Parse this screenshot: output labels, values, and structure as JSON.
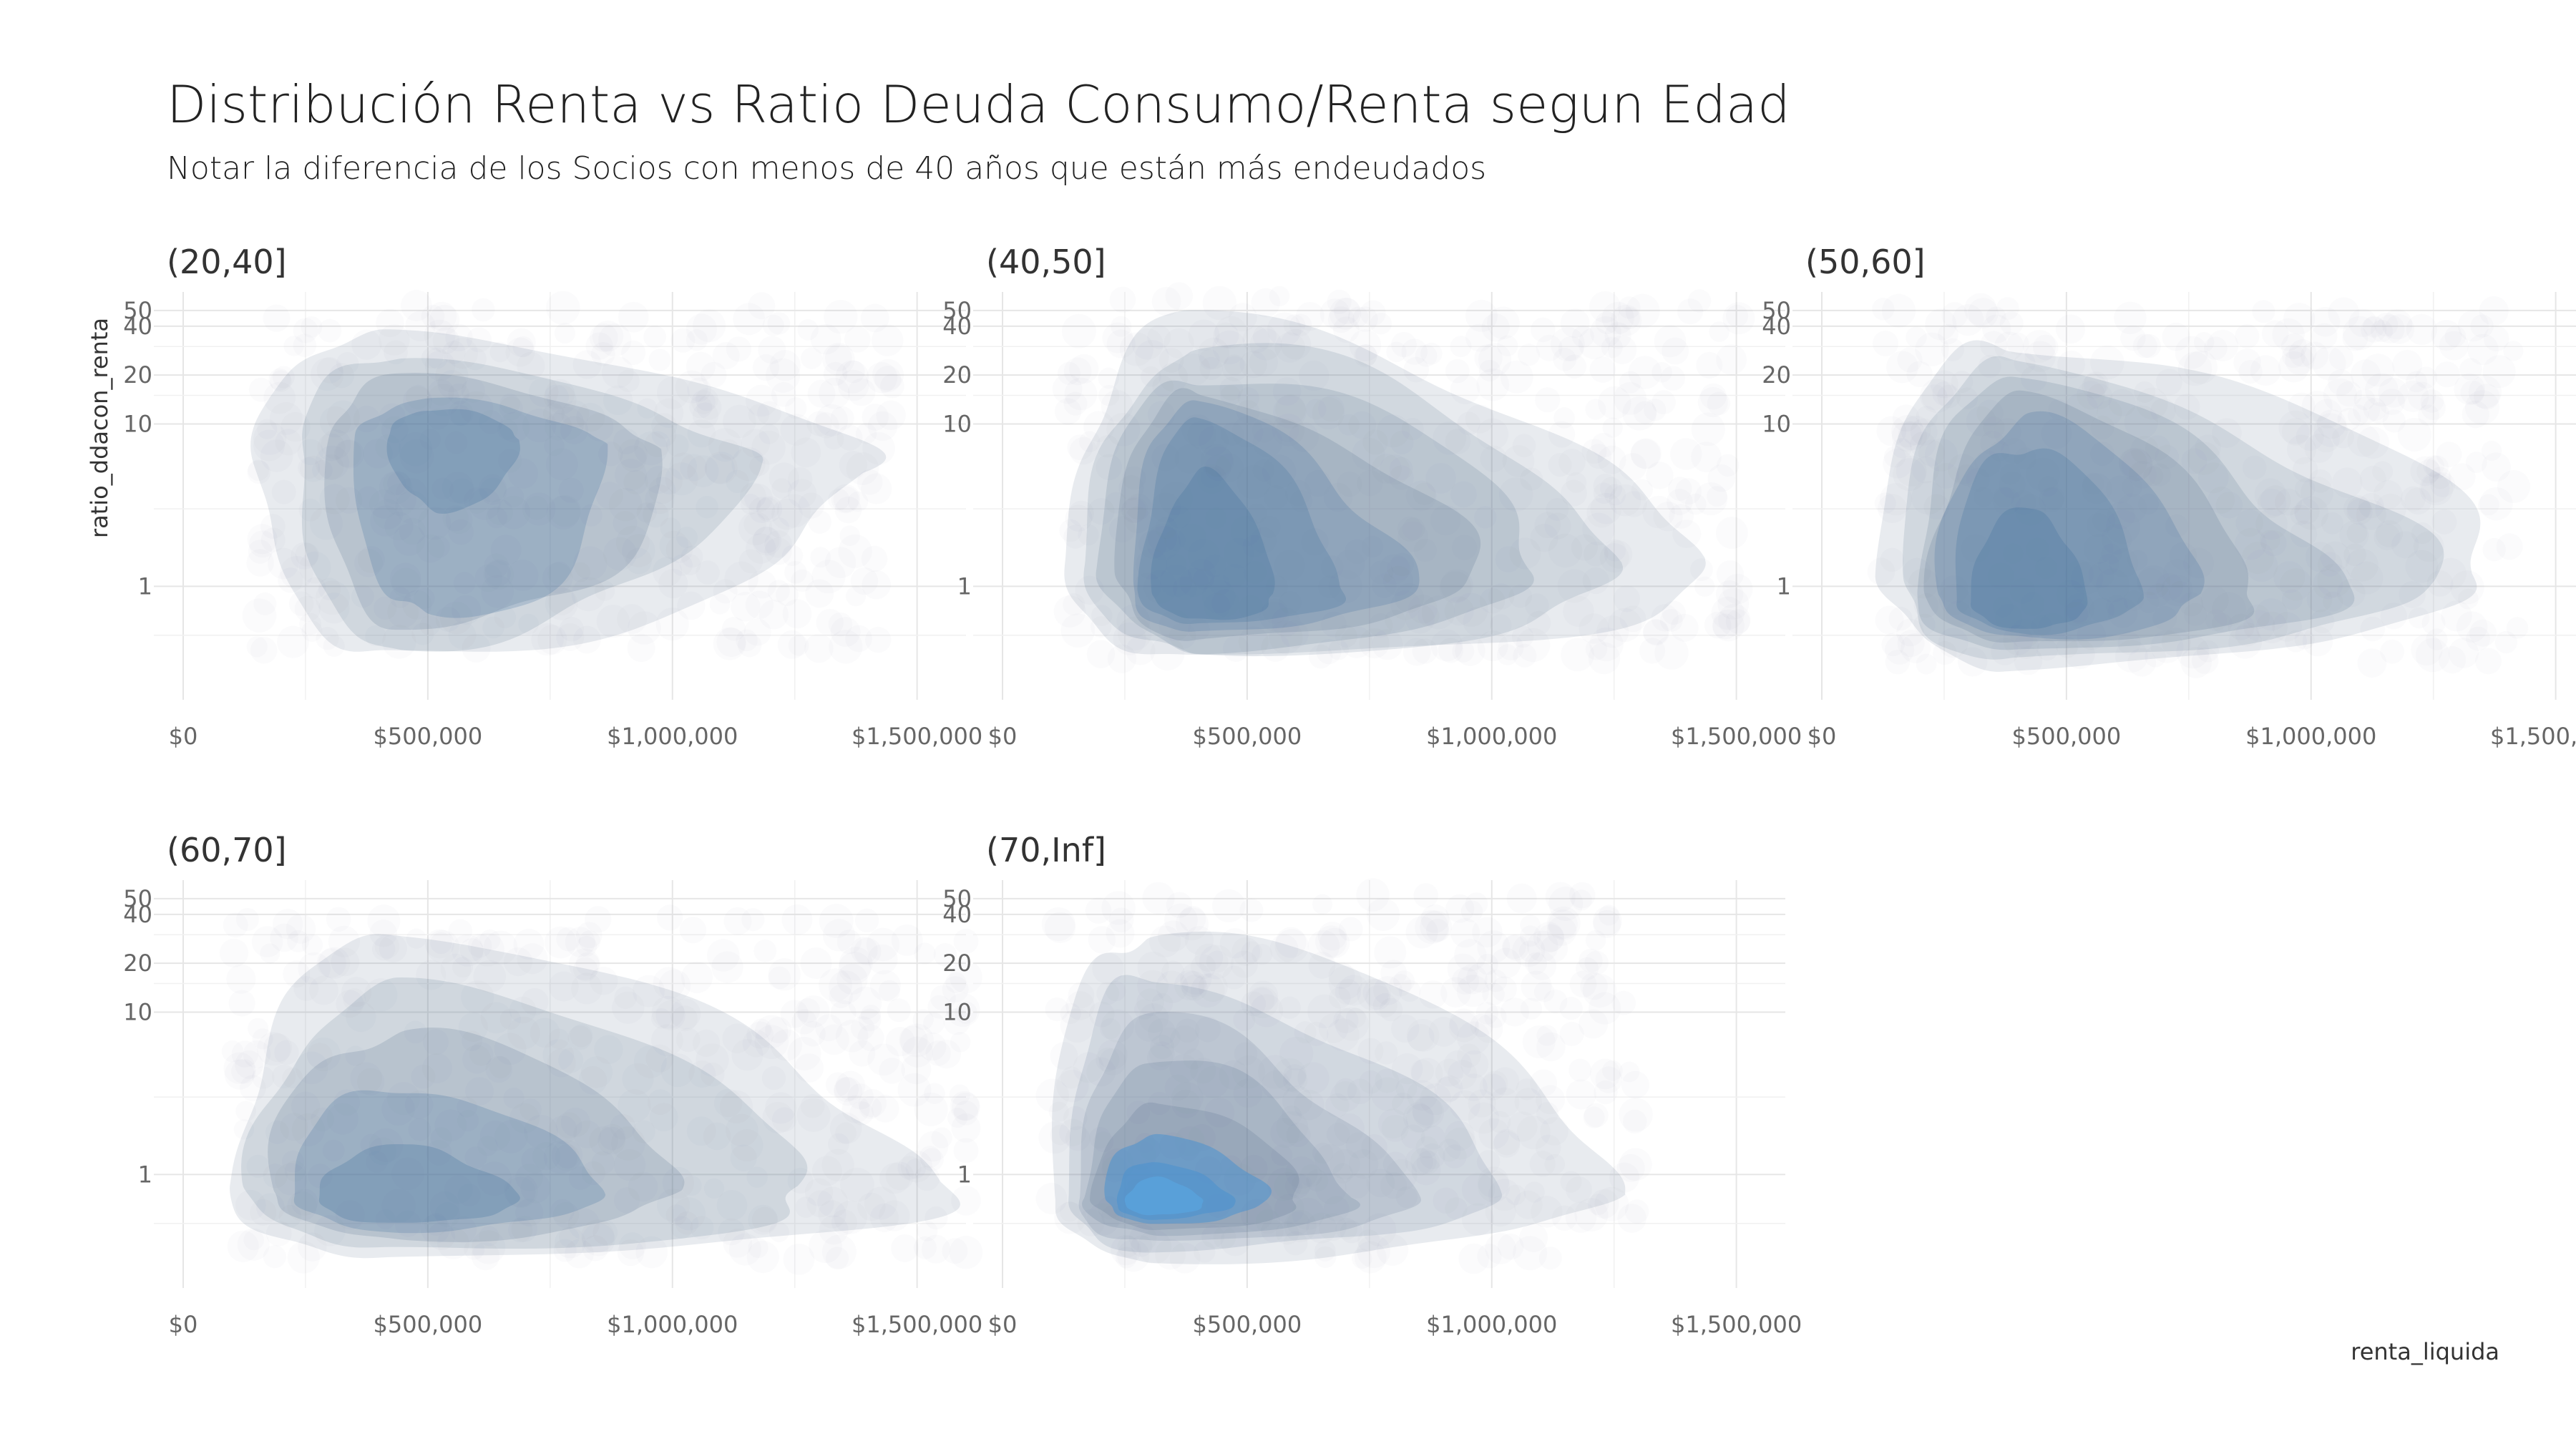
{
  "title": "Distribución Renta vs Ratio Deuda Consumo/Renta segun Edad",
  "subtitle": "Notar la diferencia de los Socios con menos de 40 años que están más endeudados",
  "chart_data": {
    "type": "density2d",
    "title": "Distribución Renta vs Ratio Deuda Consumo/Renta segun Edad",
    "subtitle": "Notar la diferencia de los Socios con menos de 40 años que están más endeudados",
    "xlabel": "renta_liquida",
    "ylabel": "ratio_ddacon_renta",
    "x_scale": "linear",
    "y_scale": "log",
    "xlim": [
      -60000,
      1600000
    ],
    "ylim": [
      0.2,
      65
    ],
    "x_ticks": [
      0,
      500000,
      1000000,
      1500000
    ],
    "x_tick_labels": [
      "$0",
      "$500,000",
      "$1,000,000",
      "$1,500,000"
    ],
    "y_ticks": [
      1,
      10,
      20,
      40,
      50
    ],
    "y_tick_labels": [
      "1",
      "10",
      "20",
      "40",
      "50"
    ],
    "grid": true,
    "fill_color": "#4a7ab0",
    "facets": [
      {
        "label": "(20,40]",
        "levels": [
          {
            "x": [
              150000,
              1390000
            ],
            "y": [
              0.4,
              38
            ],
            "mode": [
              410000,
              5.0
            ]
          },
          {
            "x": [
              230000,
              1130000
            ],
            "y": [
              0.42,
              26
            ],
            "mode": [
              450000,
              6.0
            ]
          },
          {
            "x": [
              290000,
              970000
            ],
            "y": [
              0.5,
              20
            ],
            "mode": [
              480000,
              7.0
            ]
          },
          {
            "x": [
              350000,
              870000
            ],
            "y": [
              0.6,
              14
            ],
            "mode": [
              500000,
              7.5
            ]
          },
          {
            "x": [
              420000,
              690000
            ],
            "y": [
              3.0,
              12.5
            ],
            "mode": [
              520000,
              8.0
            ]
          }
        ]
      },
      {
        "label": "(40,50]",
        "levels": [
          {
            "x": [
              130000,
              1440000
            ],
            "y": [
              0.35,
              42
            ],
            "mode": [
              380000,
              1.5
            ]
          },
          {
            "x": [
              170000,
              1270000
            ],
            "y": [
              0.38,
              28
            ],
            "mode": [
              390000,
              1.4
            ]
          },
          {
            "x": [
              200000,
              1100000
            ],
            "y": [
              0.42,
              22
            ],
            "mode": [
              400000,
              1.3
            ]
          },
          {
            "x": [
              230000,
              960000
            ],
            "y": [
              0.48,
              16
            ],
            "mode": [
              400000,
              1.2
            ]
          },
          {
            "x": [
              260000,
              830000
            ],
            "y": [
              0.52,
              13
            ],
            "mode": [
              400000,
              1.1
            ]
          },
          {
            "x": [
              280000,
              700000
            ],
            "y": [
              0.58,
              10
            ],
            "mode": [
              400000,
              1.0
            ]
          },
          {
            "x": [
              310000,
              560000
            ],
            "y": [
              0.62,
              5
            ],
            "mode": [
              410000,
              0.9
            ]
          }
        ]
      },
      {
        "label": "(50,60]",
        "levels": [
          {
            "x": [
              120000,
              1370000
            ],
            "y": [
              0.33,
              36
            ],
            "mode": [
              380000,
              1.2
            ]
          },
          {
            "x": [
              160000,
              1230000
            ],
            "y": [
              0.36,
              24
            ],
            "mode": [
              390000,
              1.1
            ]
          },
          {
            "x": [
              190000,
              1060000
            ],
            "y": [
              0.4,
              18
            ],
            "mode": [
              400000,
              1.0
            ]
          },
          {
            "x": [
              220000,
              900000
            ],
            "y": [
              0.44,
              14
            ],
            "mode": [
              410000,
              0.95
            ]
          },
          {
            "x": [
              240000,
              780000
            ],
            "y": [
              0.48,
              11
            ],
            "mode": [
              420000,
              0.9
            ]
          },
          {
            "x": [
              270000,
              650000
            ],
            "y": [
              0.52,
              8
            ],
            "mode": [
              430000,
              0.85
            ]
          },
          {
            "x": [
              300000,
              540000
            ],
            "y": [
              0.55,
              3
            ],
            "mode": [
              440000,
              0.8
            ]
          }
        ]
      },
      {
        "label": "(60,70]",
        "levels": [
          {
            "x": [
              100000,
              1560000
            ],
            "y": [
              0.3,
              27
            ],
            "mode": [
              420000,
              0.9
            ]
          },
          {
            "x": [
              140000,
              1310000
            ],
            "y": [
              0.34,
              14
            ],
            "mode": [
              440000,
              0.85
            ]
          },
          {
            "x": [
              180000,
              1010000
            ],
            "y": [
              0.4,
              8
            ],
            "mode": [
              450000,
              0.8
            ]
          },
          {
            "x": [
              220000,
              850000
            ],
            "y": [
              0.45,
              3.5
            ],
            "mode": [
              460000,
              0.75
            ]
          },
          {
            "x": [
              270000,
              680000
            ],
            "y": [
              0.5,
              1.5
            ],
            "mode": [
              470000,
              0.72
            ]
          }
        ]
      },
      {
        "label": "(70,Inf]",
        "levels": [
          {
            "x": [
              100000,
              1240000
            ],
            "y": [
              0.3,
              36
            ],
            "mode": [
              300000,
              0.75
            ]
          },
          {
            "x": [
              130000,
              1000000
            ],
            "y": [
              0.34,
              17
            ],
            "mode": [
              310000,
              0.75
            ]
          },
          {
            "x": [
              150000,
              830000
            ],
            "y": [
              0.38,
              9
            ],
            "mode": [
              320000,
              0.72
            ]
          },
          {
            "x": [
              170000,
              720000
            ],
            "y": [
              0.42,
              5
            ],
            "mode": [
              320000,
              0.72
            ]
          },
          {
            "x": [
              190000,
              620000
            ],
            "y": [
              0.46,
              2.8
            ],
            "mode": [
              320000,
              0.7
            ]
          },
          {
            "x": [
              210000,
              540000
            ],
            "y": [
              0.5,
              1.8
            ],
            "mode": [
              320000,
              0.7
            ]
          },
          {
            "x": [
              230000,
              470000
            ],
            "y": [
              0.53,
              1.2
            ],
            "mode": [
              320000,
              0.68
            ]
          },
          {
            "x": [
              250000,
              410000
            ],
            "y": [
              0.56,
              0.95
            ],
            "mode": [
              320000,
              0.68
            ]
          }
        ]
      }
    ]
  }
}
